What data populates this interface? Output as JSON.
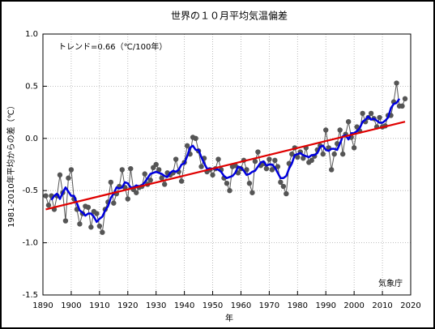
{
  "chart_data": {
    "type": "line",
    "title": "世界の１０月平均気温偏差",
    "x_label": "年",
    "y_label": "1981-2010年平均からの差（℃）",
    "annotations": [
      "トレンド=0.66（℃/100年）",
      "気象庁"
    ],
    "x": [
      1891,
      1892,
      1893,
      1894,
      1895,
      1896,
      1897,
      1898,
      1899,
      1900,
      1901,
      1902,
      1903,
      1904,
      1905,
      1906,
      1907,
      1908,
      1909,
      1910,
      1911,
      1912,
      1913,
      1914,
      1915,
      1916,
      1917,
      1918,
      1919,
      1920,
      1921,
      1922,
      1923,
      1924,
      1925,
      1926,
      1927,
      1928,
      1929,
      1930,
      1931,
      1932,
      1933,
      1934,
      1935,
      1936,
      1937,
      1938,
      1939,
      1940,
      1941,
      1942,
      1943,
      1944,
      1945,
      1946,
      1947,
      1948,
      1949,
      1950,
      1951,
      1952,
      1953,
      1954,
      1955,
      1956,
      1957,
      1958,
      1959,
      1960,
      1961,
      1962,
      1963,
      1964,
      1965,
      1966,
      1967,
      1968,
      1969,
      1970,
      1971,
      1972,
      1973,
      1974,
      1975,
      1976,
      1977,
      1978,
      1979,
      1980,
      1981,
      1982,
      1983,
      1984,
      1985,
      1986,
      1987,
      1988,
      1989,
      1990,
      1991,
      1992,
      1993,
      1994,
      1995,
      1996,
      1997,
      1998,
      1999,
      2000,
      2001,
      2002,
      2003,
      2004,
      2005,
      2006,
      2007,
      2008,
      2009,
      2010,
      2011,
      2012,
      2013,
      2014,
      2015,
      2016,
      2017,
      2018
    ],
    "series": [
      {
        "color": "#555555",
        "marker": true,
        "line": true,
        "values": [
          -0.55,
          -0.64,
          -0.55,
          -0.68,
          -0.55,
          -0.35,
          -0.52,
          -0.79,
          -0.38,
          -0.3,
          -0.58,
          -0.68,
          -0.82,
          -0.72,
          -0.65,
          -0.66,
          -0.85,
          -0.7,
          -0.72,
          -0.84,
          -0.9,
          -0.68,
          -0.61,
          -0.42,
          -0.62,
          -0.53,
          -0.46,
          -0.3,
          -0.47,
          -0.58,
          -0.29,
          -0.49,
          -0.52,
          -0.47,
          -0.46,
          -0.34,
          -0.44,
          -0.4,
          -0.28,
          -0.25,
          -0.3,
          -0.38,
          -0.44,
          -0.33,
          -0.35,
          -0.33,
          -0.2,
          -0.32,
          -0.41,
          -0.23,
          -0.07,
          -0.15,
          0.01,
          0.0,
          -0.12,
          -0.27,
          -0.19,
          -0.32,
          -0.3,
          -0.35,
          -0.29,
          -0.2,
          -0.3,
          -0.38,
          -0.43,
          -0.5,
          -0.27,
          -0.26,
          -0.33,
          -0.29,
          -0.21,
          -0.3,
          -0.43,
          -0.52,
          -0.22,
          -0.13,
          -0.26,
          -0.24,
          -0.29,
          -0.2,
          -0.3,
          -0.21,
          -0.27,
          -0.42,
          -0.46,
          -0.53,
          -0.24,
          -0.15,
          -0.09,
          -0.18,
          -0.13,
          -0.19,
          -0.09,
          -0.23,
          -0.21,
          -0.17,
          -0.11,
          -0.07,
          -0.15,
          0.08,
          -0.09,
          -0.3,
          -0.15,
          -0.05,
          0.08,
          -0.15,
          0.04,
          0.16,
          0.01,
          -0.09,
          0.11,
          0.07,
          0.24,
          0.16,
          0.2,
          0.24,
          0.19,
          0.11,
          0.2,
          0.11,
          0.12,
          0.22,
          0.22,
          0.35,
          0.53,
          0.31,
          0.31,
          0.38
        ]
      },
      {
        "color": "#0000dd",
        "marker": false,
        "line": true,
        "values": [
          null,
          null,
          -0.59,
          -0.55,
          -0.53,
          -0.58,
          -0.52,
          -0.47,
          -0.51,
          -0.55,
          -0.55,
          -0.62,
          -0.69,
          -0.71,
          -0.74,
          -0.72,
          -0.72,
          -0.75,
          -0.8,
          -0.77,
          -0.75,
          -0.69,
          -0.65,
          -0.57,
          -0.53,
          -0.47,
          -0.48,
          -0.47,
          -0.42,
          -0.43,
          -0.47,
          -0.47,
          -0.45,
          -0.46,
          -0.45,
          -0.42,
          -0.38,
          -0.34,
          -0.33,
          -0.32,
          -0.33,
          -0.34,
          -0.36,
          -0.37,
          -0.33,
          -0.31,
          -0.32,
          -0.3,
          -0.25,
          -0.24,
          -0.17,
          -0.09,
          -0.07,
          -0.11,
          -0.11,
          -0.18,
          -0.24,
          -0.29,
          -0.29,
          -0.29,
          -0.29,
          -0.3,
          -0.32,
          -0.36,
          -0.38,
          -0.37,
          -0.36,
          -0.33,
          -0.27,
          -0.28,
          -0.31,
          -0.35,
          -0.34,
          -0.32,
          -0.31,
          -0.27,
          -0.23,
          -0.22,
          -0.26,
          -0.25,
          -0.25,
          -0.28,
          -0.33,
          -0.38,
          -0.38,
          -0.36,
          -0.29,
          -0.24,
          -0.16,
          -0.15,
          -0.14,
          -0.16,
          -0.17,
          -0.18,
          -0.16,
          -0.16,
          -0.14,
          -0.08,
          -0.07,
          -0.11,
          -0.12,
          -0.1,
          -0.1,
          -0.11,
          -0.05,
          0.02,
          0.03,
          -0.01,
          0.05,
          0.05,
          0.07,
          0.1,
          0.16,
          0.18,
          0.21,
          0.18,
          0.19,
          0.17,
          0.15,
          0.15,
          0.17,
          0.2,
          0.29,
          0.33,
          0.34,
          0.38,
          null,
          null
        ]
      }
    ],
    "trend": {
      "color": "#e00000",
      "x": [
        1891,
        2018
      ],
      "values": [
        -0.68,
        0.16
      ]
    },
    "xlim": [
      1890,
      2020
    ],
    "xticks": [
      1890,
      1900,
      1910,
      1920,
      1930,
      1940,
      1950,
      1960,
      1970,
      1980,
      1990,
      2000,
      2010,
      2020
    ],
    "ylim": [
      -1.5,
      1.0
    ],
    "yticks": [
      {
        "value": 1.0,
        "label": "1.0"
      },
      0.5,
      {
        "value": 0.0,
        "label": "0.0"
      },
      -0.5,
      {
        "value": -1.0,
        "label": "-1.0"
      },
      -1.5
    ],
    "grid": true
  }
}
